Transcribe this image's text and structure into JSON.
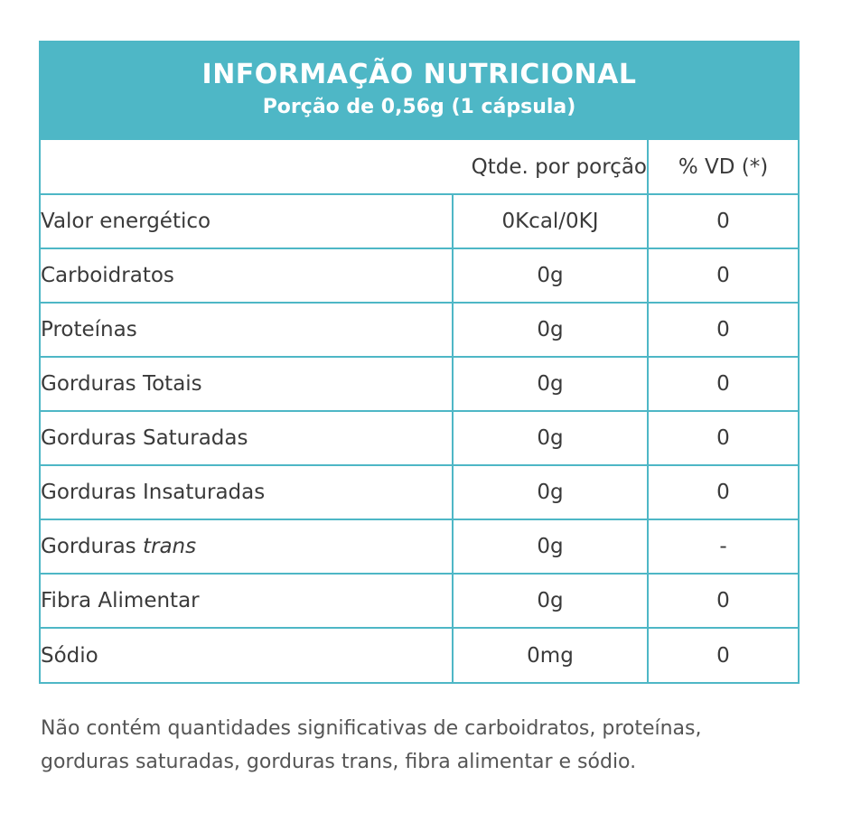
{
  "label": {
    "title": "INFORMAÇÃO NUTRICIONAL",
    "subtitle": "Porção de 0,56g (1 cápsula)",
    "header_qty": "Qtde. por porção",
    "header_vd": "% VD (*)",
    "accent_color": "#4eb7c6",
    "rows": [
      {
        "name": "Valor energético",
        "qty": "0Kcal/0KJ",
        "vd": "0"
      },
      {
        "name": "Carboidratos",
        "qty": "0g",
        "vd": "0"
      },
      {
        "name": "Proteínas",
        "qty": "0g",
        "vd": "0"
      },
      {
        "name": "Gorduras Totais",
        "qty": "0g",
        "vd": "0"
      },
      {
        "name": "Gorduras Saturadas",
        "qty": "0g",
        "vd": "0"
      },
      {
        "name": "Gorduras Insaturadas",
        "qty": "0g",
        "vd": "0"
      },
      {
        "name_prefix": "Gorduras",
        "name_italic": "trans",
        "qty": "0g",
        "vd": "-"
      },
      {
        "name": "Fibra Alimentar",
        "qty": "0g",
        "vd": "0"
      },
      {
        "name": "Sódio",
        "qty": "0mg",
        "vd": "0"
      }
    ]
  },
  "footnote": {
    "line1": "Não contém quantidades significativas de carboidratos, proteínas,",
    "line2": "gorduras saturadas, gorduras trans, fibra alimentar e sódio."
  }
}
